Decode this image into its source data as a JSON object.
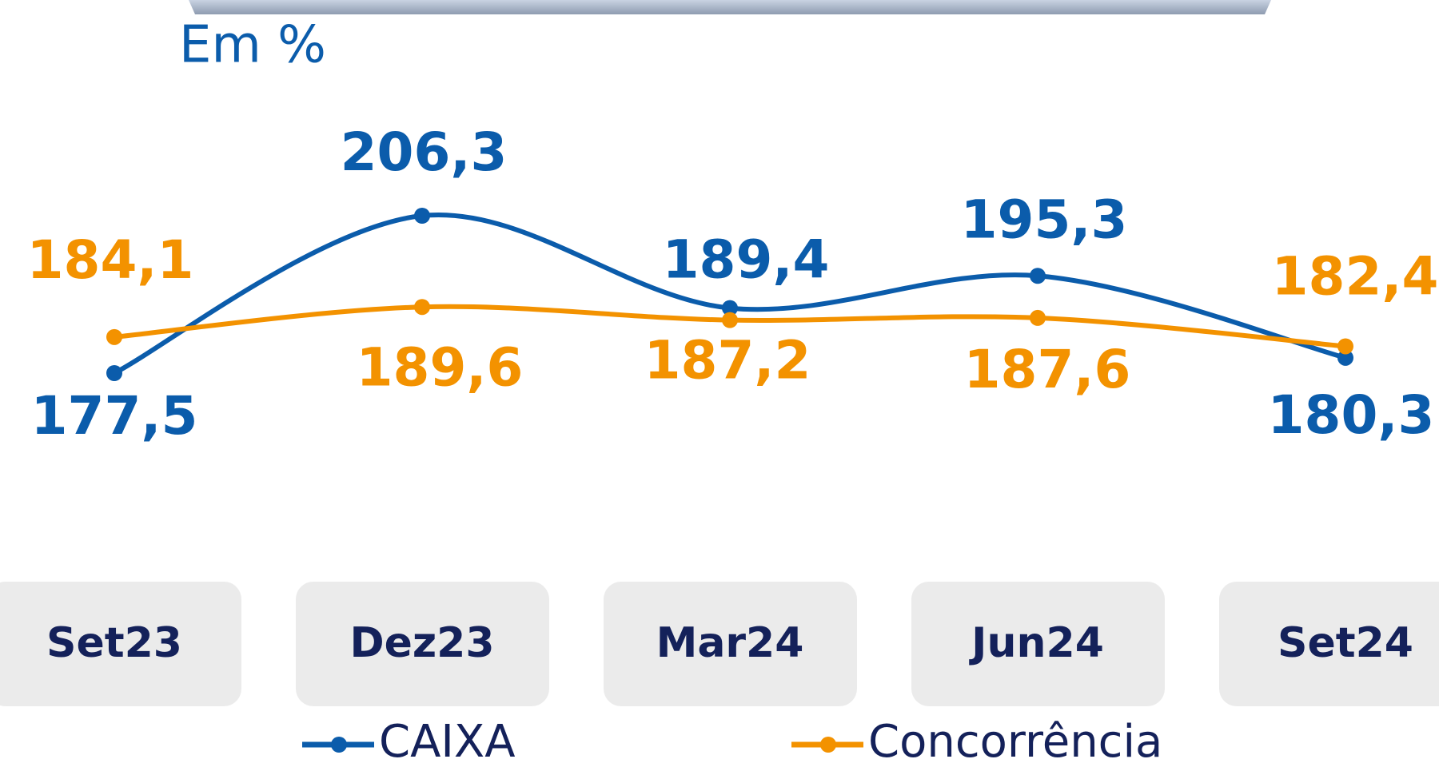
{
  "chart_data": {
    "type": "line",
    "title": "Em %",
    "categories": [
      "Set23",
      "Dez23",
      "Mar24",
      "Jun24",
      "Set24"
    ],
    "series": [
      {
        "name": "CAIXA",
        "color": "#0b5cab",
        "values": [
          177.5,
          206.3,
          189.4,
          195.3,
          180.3
        ],
        "value_labels": [
          "177,5",
          "206,3",
          "189,4",
          "195,3",
          "180,3"
        ]
      },
      {
        "name": "Concorrência",
        "color": "#f39200",
        "values": [
          184.1,
          189.6,
          187.2,
          187.6,
          182.4
        ],
        "value_labels": [
          "184,1",
          "189,6",
          "187,2",
          "187,6",
          "182,4"
        ]
      }
    ]
  }
}
